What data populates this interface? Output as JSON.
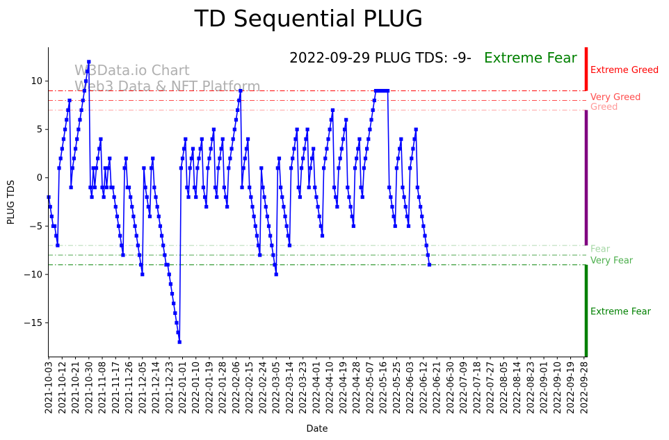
{
  "chart_data": {
    "type": "line",
    "title": "TD Sequential PLUG",
    "xlabel": "Date",
    "ylabel": "PLUG TDS",
    "ylim": [
      -18.5,
      13.5
    ],
    "xlim": [
      -0.5,
      361.5
    ],
    "yticks": [
      -15,
      -10,
      -5,
      0,
      5,
      10
    ],
    "annotation": "2022-09-29 PLUG TDS: -9-",
    "status": {
      "label": "Extreme Fear",
      "color": "#008000"
    },
    "watermark": [
      "W3Data.io Chart",
      "Web3 Data & NFT Platform"
    ],
    "xticks": [
      "2021-10-03",
      "2021-10-12",
      "2021-10-21",
      "2021-10-30",
      "2021-11-08",
      "2021-11-17",
      "2021-11-26",
      "2021-12-05",
      "2021-12-14",
      "2021-12-23",
      "2022-01-01",
      "2022-01-10",
      "2022-01-19",
      "2022-01-28",
      "2022-02-06",
      "2022-02-15",
      "2022-02-24",
      "2022-03-05",
      "2022-03-14",
      "2022-03-23",
      "2022-04-01",
      "2022-04-10",
      "2022-04-19",
      "2022-04-28",
      "2022-05-07",
      "2022-05-16",
      "2022-05-25",
      "2022-06-03",
      "2022-06-12",
      "2022-06-21",
      "2022-06-30",
      "2022-07-09",
      "2022-07-18",
      "2022-07-27",
      "2022-08-05",
      "2022-08-14",
      "2022-08-23",
      "2022-09-01",
      "2022-09-10",
      "2022-09-19",
      "2022-09-28"
    ],
    "thresholds": [
      {
        "name": "Extreme Greed",
        "value": 9,
        "color": "#ff0000",
        "opacity": 1.0
      },
      {
        "name": "Very Greed",
        "value": 8,
        "color": "#ff0000",
        "opacity": 0.7
      },
      {
        "name": "Greed",
        "value": 7,
        "color": "#ff0000",
        "opacity": 0.35
      },
      {
        "name": "Fear",
        "value": -7,
        "color": "#008000",
        "opacity": 0.3
      },
      {
        "name": "Very Fear",
        "value": -8,
        "color": "#008000",
        "opacity": 0.7
      },
      {
        "name": "Extreme Fear",
        "value": -9,
        "color": "#008000",
        "opacity": 1.0
      }
    ],
    "zone_labels": [
      {
        "text": "Extreme Greed",
        "value": 11.2,
        "color": "#ff0000"
      },
      {
        "text": "Very Greed",
        "value": 8.4,
        "color": "#ff4d4d"
      },
      {
        "text": "Greed",
        "value": 7.4,
        "color": "#ff9999"
      },
      {
        "text": "Fear",
        "value": -7.3,
        "color": "#a6d8a6"
      },
      {
        "text": "Very Fear",
        "value": -8.5,
        "color": "#4daf4d"
      },
      {
        "text": "Extreme Fear",
        "value": -13.8,
        "color": "#008000"
      }
    ],
    "side_bar": [
      {
        "from": 9,
        "to": 13.5,
        "color": "#ff0000"
      },
      {
        "from": -7,
        "to": 7,
        "color": "#800080"
      },
      {
        "from": -18.5,
        "to": -9,
        "color": "#008000"
      }
    ],
    "series": [
      {
        "name": "PLUG TDS",
        "color": "#0000ff",
        "values": [
          -2,
          -3,
          -4,
          -5,
          -5,
          -6,
          -7,
          1,
          2,
          3,
          4,
          5,
          6,
          7,
          8,
          -1,
          1,
          2,
          3,
          4,
          5,
          6,
          7,
          8,
          9,
          10,
          11,
          12,
          -1,
          -2,
          1,
          -1,
          1,
          2,
          3,
          4,
          -1,
          -2,
          1,
          -1,
          1,
          2,
          -1,
          -1,
          -2,
          -3,
          -4,
          -5,
          -6,
          -7,
          -8,
          1,
          2,
          -1,
          -1,
          -2,
          -3,
          -4,
          -5,
          -6,
          -7,
          -8,
          -9,
          -10,
          1,
          -1,
          -2,
          -3,
          -4,
          1,
          2,
          -1,
          -2,
          -3,
          -4,
          -5,
          -6,
          -7,
          -8,
          -9,
          -9,
          -10,
          -11,
          -12,
          -13,
          -14,
          -15,
          -16,
          -17,
          1,
          2,
          3,
          4,
          -1,
          -2,
          1,
          2,
          3,
          -1,
          -2,
          1,
          2,
          3,
          4,
          -1,
          -2,
          -3,
          1,
          2,
          3,
          4,
          5,
          -1,
          -2,
          1,
          2,
          3,
          4,
          -1,
          -2,
          -3,
          1,
          2,
          3,
          4,
          5,
          6,
          7,
          8,
          9,
          -1,
          1,
          2,
          3,
          4,
          -1,
          -2,
          -3,
          -4,
          -5,
          -6,
          -7,
          -8,
          1,
          -1,
          -2,
          -3,
          -4,
          -5,
          -6,
          -7,
          -8,
          -9,
          -10,
          1,
          2,
          -1,
          -2,
          -3,
          -4,
          -5,
          -6,
          -7,
          1,
          2,
          3,
          4,
          5,
          -1,
          -2,
          1,
          2,
          3,
          4,
          5,
          -1,
          1,
          2,
          3,
          -1,
          -2,
          -3,
          -4,
          -5,
          -6,
          1,
          2,
          3,
          4,
          5,
          6,
          7,
          -1,
          -2,
          -3,
          1,
          2,
          3,
          4,
          5,
          6,
          -1,
          -2,
          -3,
          -4,
          -5,
          1,
          2,
          3,
          4,
          -1,
          -2,
          1,
          2,
          3,
          4,
          5,
          6,
          7,
          8,
          9,
          9,
          9,
          9,
          9,
          9,
          9,
          9,
          9,
          -1,
          -2,
          -3,
          -4,
          -5,
          1,
          2,
          3,
          4,
          -1,
          -2,
          -3,
          -4,
          -5,
          1,
          2,
          3,
          4,
          5,
          -1,
          -2,
          -3,
          -4,
          -5,
          -6,
          -7,
          -8,
          -9
        ]
      }
    ]
  }
}
